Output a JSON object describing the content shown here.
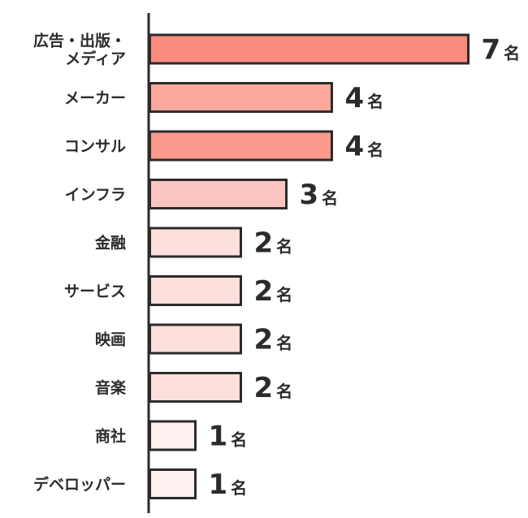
{
  "chart_data": {
    "type": "bar",
    "orientation": "horizontal",
    "unit": "名",
    "categories": [
      [
        "広告・出版・",
        "メディア"
      ],
      [
        "メーカー"
      ],
      [
        "コンサル"
      ],
      [
        "インフラ"
      ],
      [
        "金融"
      ],
      [
        "サービス"
      ],
      [
        "映画"
      ],
      [
        "音楽"
      ],
      [
        "商社"
      ],
      [
        "デベロッパー"
      ]
    ],
    "values": [
      7,
      4,
      4,
      3,
      2,
      2,
      2,
      2,
      1,
      1
    ],
    "colors": [
      "#fb8a7e",
      "#fca79c",
      "#fc9a8e",
      "#fdc5bf",
      "#fde0dd",
      "#fde0dd",
      "#fde0dd",
      "#fde0dd",
      "#fef0ee",
      "#fef0ee"
    ],
    "axis_color": "#2b2b2b",
    "grid": false,
    "legend": "none"
  }
}
